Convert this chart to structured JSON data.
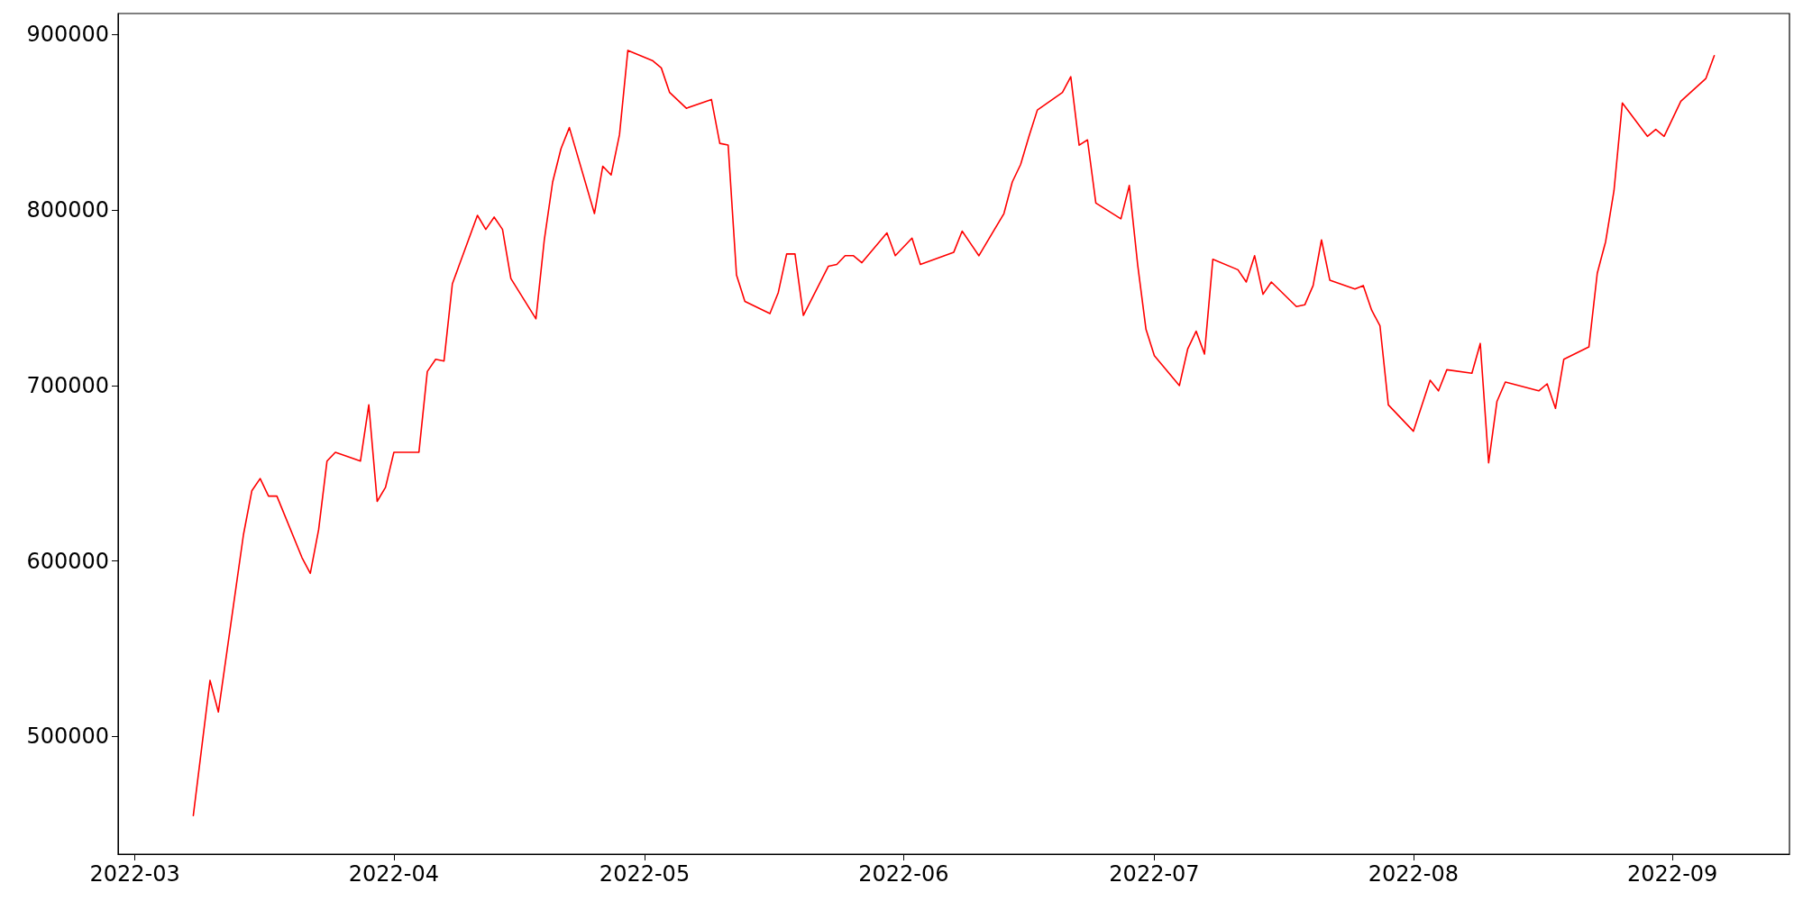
{
  "chart_data": {
    "type": "line",
    "x": [
      "2022-03-08",
      "2022-03-10",
      "2022-03-11",
      "2022-03-14",
      "2022-03-15",
      "2022-03-16",
      "2022-03-17",
      "2022-03-18",
      "2022-03-21",
      "2022-03-22",
      "2022-03-23",
      "2022-03-24",
      "2022-03-25",
      "2022-03-28",
      "2022-03-29",
      "2022-03-30",
      "2022-03-31",
      "2022-04-01",
      "2022-04-04",
      "2022-04-05",
      "2022-04-06",
      "2022-04-07",
      "2022-04-08",
      "2022-04-11",
      "2022-04-12",
      "2022-04-13",
      "2022-04-14",
      "2022-04-15",
      "2022-04-18",
      "2022-04-19",
      "2022-04-20",
      "2022-04-21",
      "2022-04-22",
      "2022-04-25",
      "2022-04-26",
      "2022-04-27",
      "2022-04-28",
      "2022-04-29",
      "2022-05-02",
      "2022-05-03",
      "2022-05-04",
      "2022-05-06",
      "2022-05-09",
      "2022-05-10",
      "2022-05-11",
      "2022-05-12",
      "2022-05-13",
      "2022-05-16",
      "2022-05-17",
      "2022-05-18",
      "2022-05-19",
      "2022-05-20",
      "2022-05-23",
      "2022-05-24",
      "2022-05-25",
      "2022-05-26",
      "2022-05-27",
      "2022-05-30",
      "2022-05-31",
      "2022-06-02",
      "2022-06-03",
      "2022-06-07",
      "2022-06-08",
      "2022-06-09",
      "2022-06-10",
      "2022-06-13",
      "2022-06-14",
      "2022-06-15",
      "2022-06-16",
      "2022-06-17",
      "2022-06-20",
      "2022-06-21",
      "2022-06-22",
      "2022-06-23",
      "2022-06-24",
      "2022-06-27",
      "2022-06-28",
      "2022-06-29",
      "2022-06-30",
      "2022-07-01",
      "2022-07-04",
      "2022-07-05",
      "2022-07-06",
      "2022-07-07",
      "2022-07-08",
      "2022-07-11",
      "2022-07-12",
      "2022-07-13",
      "2022-07-14",
      "2022-07-15",
      "2022-07-18",
      "2022-07-19",
      "2022-07-20",
      "2022-07-21",
      "2022-07-22",
      "2022-07-25",
      "2022-07-26",
      "2022-07-27",
      "2022-07-28",
      "2022-07-29",
      "2022-08-01",
      "2022-08-03",
      "2022-08-04",
      "2022-08-05",
      "2022-08-08",
      "2022-08-09",
      "2022-08-10",
      "2022-08-11",
      "2022-08-12",
      "2022-08-16",
      "2022-08-17",
      "2022-08-18",
      "2022-08-19",
      "2022-08-22",
      "2022-08-23",
      "2022-08-24",
      "2022-08-25",
      "2022-08-26",
      "2022-08-29",
      "2022-08-30",
      "2022-08-31",
      "2022-09-01",
      "2022-09-02",
      "2022-09-05",
      "2022-09-06"
    ],
    "series": [
      {
        "color": "#ff0000",
        "values": [
          455000,
          532000,
          514000,
          615000,
          640000,
          647000,
          637000,
          637000,
          602000,
          593000,
          618000,
          657000,
          662000,
          657000,
          689000,
          634000,
          642000,
          662000,
          662000,
          708000,
          715000,
          714000,
          758000,
          797000,
          789000,
          796000,
          789000,
          761000,
          738000,
          783000,
          816000,
          835000,
          847000,
          798000,
          825000,
          820000,
          843000,
          891000,
          885000,
          881000,
          867000,
          858000,
          863000,
          838000,
          837000,
          763000,
          748000,
          741000,
          753000,
          775000,
          775000,
          740000,
          768000,
          769000,
          774000,
          774000,
          770000,
          787000,
          774000,
          784000,
          769000,
          776000,
          788000,
          781000,
          774000,
          798000,
          816000,
          826000,
          842000,
          857000,
          867000,
          876000,
          837000,
          840000,
          804000,
          795000,
          814000,
          769000,
          732000,
          717000,
          700000,
          721000,
          731000,
          718000,
          772000,
          766000,
          759000,
          774000,
          752000,
          759000,
          745000,
          746000,
          757000,
          783000,
          760000,
          755000,
          757000,
          743000,
          734000,
          689000,
          674000,
          703000,
          697000,
          709000,
          707000,
          724000,
          656000,
          691000,
          702000,
          697000,
          701000,
          687000,
          715000,
          722000,
          764000,
          782000,
          811000,
          861000,
          842000,
          846000,
          842000,
          852000,
          862000,
          875000,
          888000
        ]
      }
    ],
    "xlim": [
      "2022-02-27",
      "2022-09-15"
    ],
    "xticks": [
      "2022-03",
      "2022-04",
      "2022-05",
      "2022-06",
      "2022-07",
      "2022-08",
      "2022-09"
    ],
    "ylim": [
      433000,
      912000
    ],
    "yticks": [
      500000,
      600000,
      700000,
      800000,
      900000
    ],
    "grid": false,
    "legend": false,
    "marker": "none",
    "line_style": "solid"
  }
}
